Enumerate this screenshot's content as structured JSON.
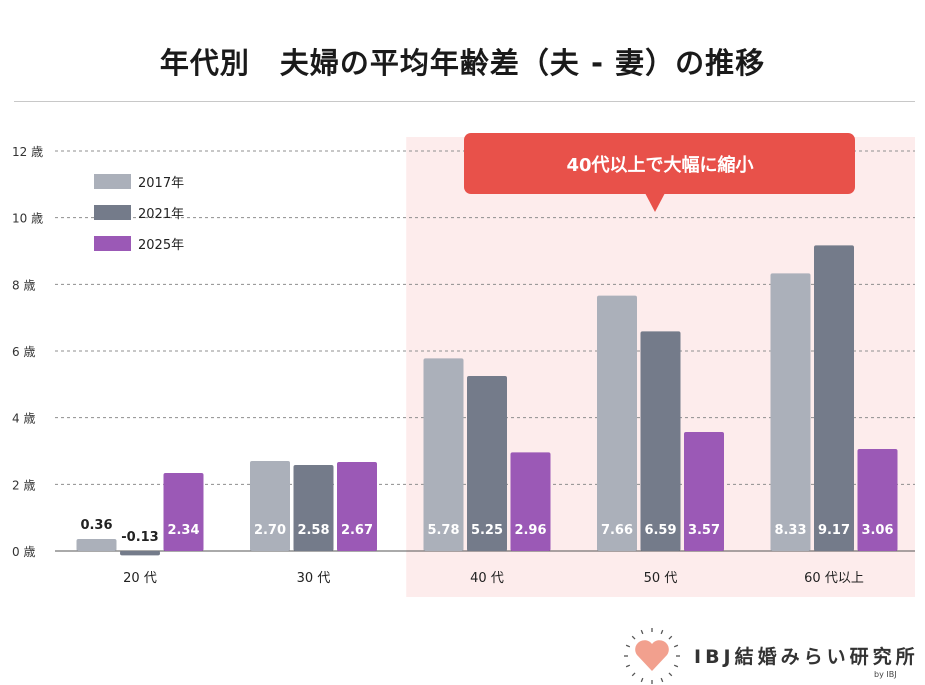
{
  "title": "年代別　夫婦の平均年齢差（夫 - 妻）の推移",
  "callout": "40代以上で大幅に縮小",
  "brand": {
    "name": "IBJ結婚みらい研究所",
    "byline": "by IBJ"
  },
  "colors": {
    "s2017": "#abb0ba",
    "s2021": "#747b8a",
    "s2025": "#9b59b6",
    "highlight_bg": "#fdecec",
    "callout_bg": "#e8514a",
    "heart": "#f2a08e"
  },
  "chart_data": {
    "type": "bar",
    "categories": [
      "20 代",
      "30 代",
      "40 代",
      "50 代",
      "60 代以上"
    ],
    "series": [
      {
        "name": "2017年",
        "values": [
          0.36,
          2.7,
          5.78,
          7.66,
          8.33
        ]
      },
      {
        "name": "2021年",
        "values": [
          -0.13,
          2.58,
          5.25,
          6.59,
          9.17
        ]
      },
      {
        "name": "2025年",
        "values": [
          2.34,
          2.67,
          2.96,
          3.57,
          3.06
        ]
      }
    ],
    "data_labels": [
      [
        "0.36",
        "2.70",
        "5.78",
        "7.66",
        "8.33"
      ],
      [
        "-0.13",
        "2.58",
        "5.25",
        "6.59",
        "9.17"
      ],
      [
        "2.34",
        "2.67",
        "2.96",
        "3.57",
        "3.06"
      ]
    ],
    "yticks": [
      "0 歳",
      "2 歳",
      "4 歳",
      "6 歳",
      "8 歳",
      "10 歳",
      "12 歳"
    ],
    "ylim": [
      0,
      12
    ],
    "grid": true,
    "legend": "top-left",
    "highlight_categories": [
      "40 代",
      "50 代",
      "60 代以上"
    ]
  }
}
